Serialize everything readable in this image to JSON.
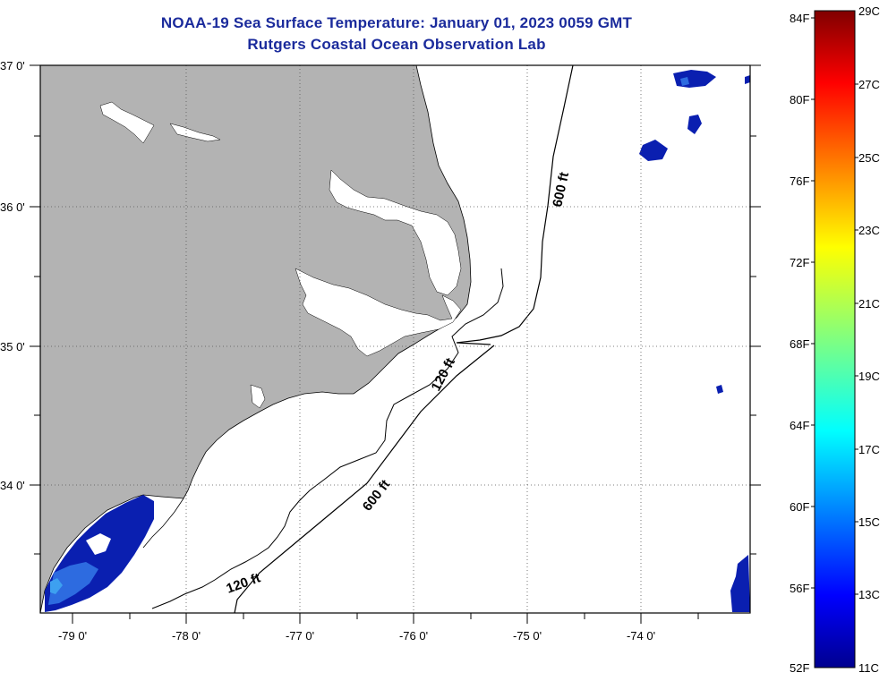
{
  "header": {
    "title": "NOAA-19 Sea Surface Temperature:  January 01, 2023 0059 GMT",
    "subtitle": "Rutgers Coastal Ocean Observation Lab"
  },
  "map": {
    "longitude_labels": [
      "-79 0'",
      "-78 0'",
      "-77 0'",
      "-76 0'",
      "-75 0'",
      "-74 0'"
    ],
    "latitude_labels": [
      "37 0'",
      "36 0'",
      "35 0'",
      "34 0'"
    ],
    "contour_labels": {
      "c600_north": "600 ft",
      "c120_mid": "120 ft",
      "c600_south": "600 ft",
      "c120_south": "120 ft"
    },
    "colors": {
      "land": "#b3b3b3",
      "water_background": "#ffffff",
      "cold_sst": "#0a1fb0",
      "cool_sst": "#2d6be0"
    }
  },
  "colorbar": {
    "fahrenheit_labels": [
      "84F",
      "80F",
      "76F",
      "72F",
      "68F",
      "64F",
      "60F",
      "56F",
      "52F"
    ],
    "celsius_labels": [
      "29C",
      "27C",
      "25C",
      "23C",
      "21C",
      "19C",
      "17C",
      "15C",
      "13C",
      "11C"
    ],
    "colormap": "jet"
  }
}
